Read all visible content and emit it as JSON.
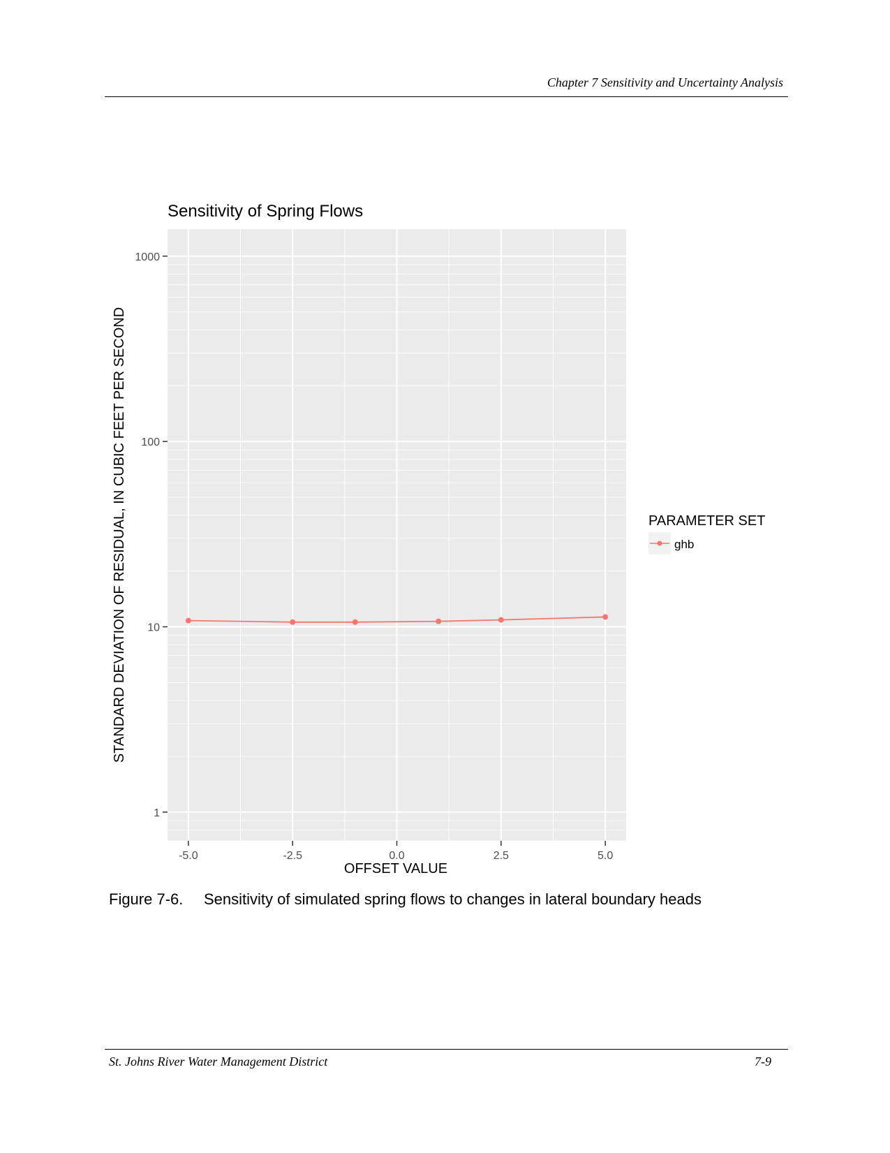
{
  "header": {
    "running_title": "Chapter 7  Sensitivity and Uncertainty Analysis"
  },
  "footer": {
    "organization": "St. Johns River Water Management District",
    "page_number": "7-9"
  },
  "caption": {
    "number": "Figure 7-6.",
    "text": "Sensitivity of simulated spring flows to changes in lateral boundary heads"
  },
  "colors": {
    "panel": "#ebebeb",
    "grid": "#ffffff",
    "series": "#f8766d"
  },
  "chart_data": {
    "type": "line",
    "title": "Sensitivity of Spring Flows",
    "xlabel": "OFFSET VALUE",
    "ylabel": "STANDARD DEVIATION OF RESIDUAL, IN CUBIC FEET PER SECOND",
    "y_scale": "log10",
    "xlim": [
      -5.5,
      5.5
    ],
    "ylim": [
      0.7,
      1400
    ],
    "x_ticks": [
      -5.0,
      -2.5,
      0.0,
      2.5,
      5.0
    ],
    "x_tick_labels": [
      "-5.0",
      "-2.5",
      "0.0",
      "2.5",
      "5.0"
    ],
    "y_ticks": [
      1,
      10,
      100,
      1000
    ],
    "y_tick_labels": [
      "1",
      "10",
      "100",
      "1000"
    ],
    "grid": true,
    "legend": {
      "title": "PARAMETER SET",
      "position": "right"
    },
    "series": [
      {
        "name": "ghb",
        "x": [
          -5.0,
          -2.5,
          -1.0,
          1.0,
          2.5,
          5.0
        ],
        "y": [
          10.8,
          10.6,
          10.6,
          10.7,
          10.9,
          11.3
        ]
      }
    ]
  }
}
